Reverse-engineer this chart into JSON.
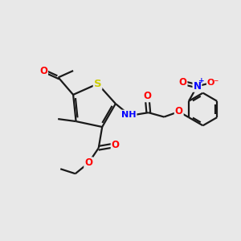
{
  "background_color": "#e8e8e8",
  "bond_color": "#1a1a1a",
  "bond_width": 1.6,
  "atom_colors": {
    "S": "#cccc00",
    "N": "#0000ff",
    "O": "#ff0000",
    "C": "#1a1a1a",
    "H": "#1a1a1a"
  },
  "font_size": 8.5,
  "fig_width": 3.0,
  "fig_height": 3.0,
  "dpi": 100
}
